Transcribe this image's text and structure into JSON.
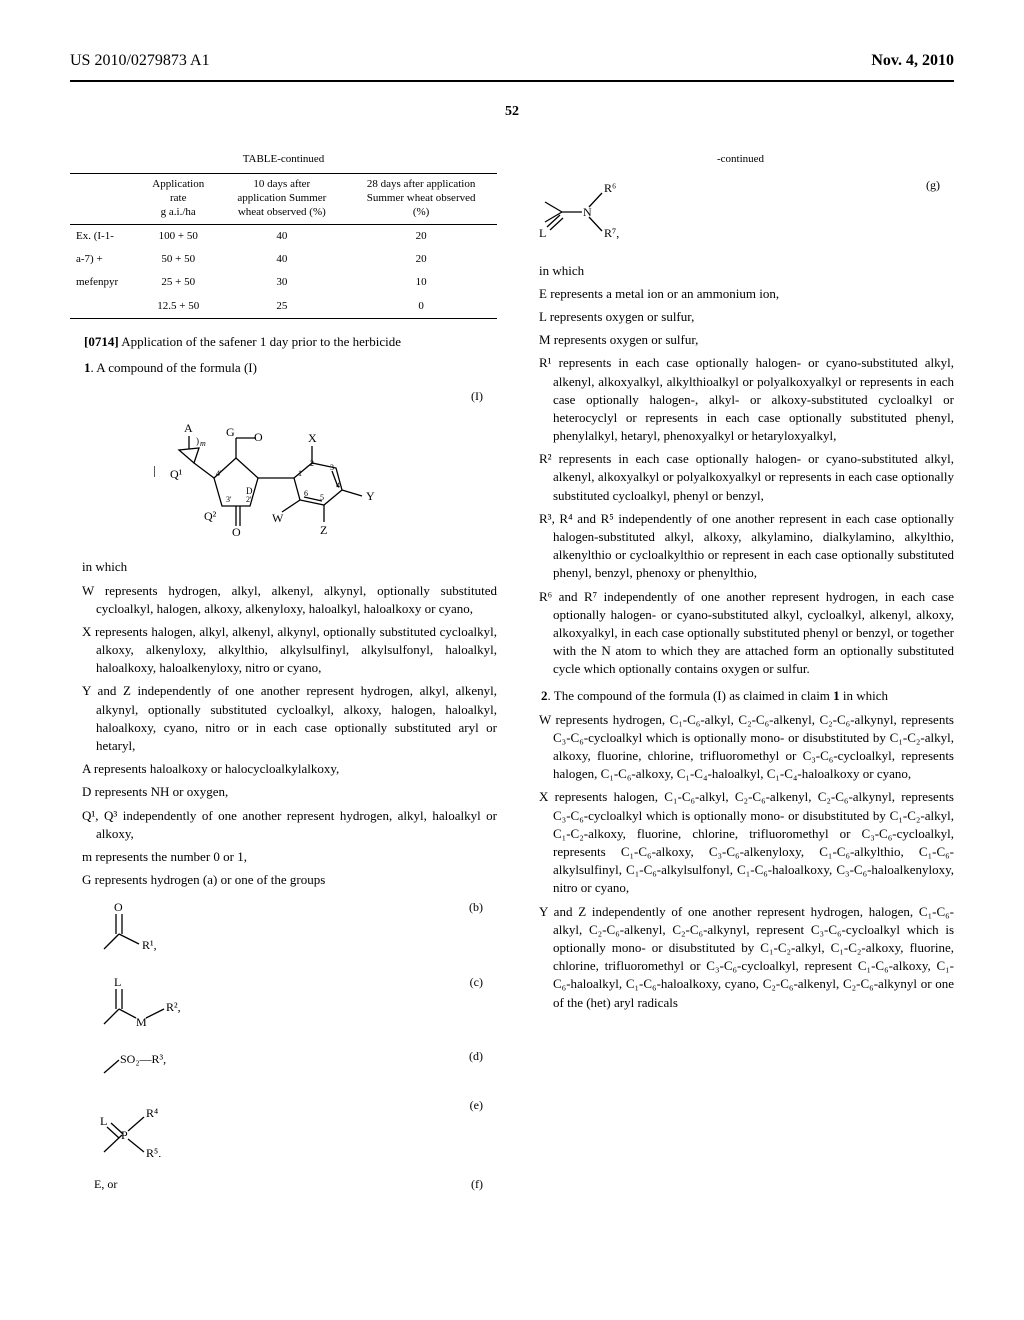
{
  "header": {
    "left": "US 2010/0279873 A1",
    "right": "Nov. 4, 2010"
  },
  "page_number": "52",
  "table": {
    "title": "TABLE-continued",
    "headers": {
      "c1": "",
      "c2": "Application\nrate\ng a.i./ha",
      "c3": "10 days after\napplication Summer\nwheat observed (%)",
      "c4": "28 days after application\nSummer wheat observed\n(%)"
    },
    "row_labels": [
      "Ex. (I-1-",
      "a-7) +",
      "mefenpyr",
      ""
    ],
    "rows": [
      {
        "c2": "100 + 50",
        "c3": "40",
        "c4": "20"
      },
      {
        "c2": "50 + 50",
        "c3": "40",
        "c4": "20"
      },
      {
        "c2": "25 + 50",
        "c3": "30",
        "c4": "10"
      },
      {
        "c2": "12.5 + 50",
        "c3": "25",
        "c4": "0"
      }
    ]
  },
  "para_0714": {
    "num": "[0714]",
    "text": "Application of the safener 1 day prior to the herbicide"
  },
  "claim1": {
    "opener_num": "1",
    "opener_text": ". A compound of the formula (I)",
    "formula_label": "(I)",
    "in_which": "in which",
    "defs": [
      "W represents hydrogen, alkyl, alkenyl, alkynyl, optionally substituted cycloalkyl, halogen, alkoxy, alkenyloxy, haloalkyl, haloalkoxy or cyano,",
      "X represents halogen, alkyl, alkenyl, alkynyl, optionally substituted cycloalkyl, alkoxy, alkenyloxy, alkylthio, alkylsulfinyl, alkylsulfonyl, haloalkyl, haloalkoxy, haloalkenyloxy, nitro or cyano,",
      "Y and Z independently of one another represent hydrogen, alkyl, alkenyl, alkynyl, optionally substituted cycloalkyl, alkoxy, halogen, haloalkyl, haloalkoxy, cyano, nitro or in each case optionally substituted aryl or hetaryl,",
      "A represents haloalkoxy or halocycloalkylalkoxy,",
      "D represents NH or oxygen,",
      "Q¹, Q³ independently of one another represent hydrogen, alkyl, haloalkyl or alkoxy,",
      "m represents the number 0 or 1,",
      "G represents hydrogen (a) or one of the groups"
    ],
    "sub_labels": {
      "b": "(b)",
      "c": "(c)",
      "d": "(d)",
      "e": "(e)",
      "f": "(f)",
      "g": "(g)"
    },
    "f_text": "E, or"
  },
  "right_col": {
    "continued": "-continued",
    "in_which": "in which",
    "defs": [
      "E represents a metal ion or an ammonium ion,",
      "L represents oxygen or sulfur,",
      "M represents oxygen or sulfur,",
      "R¹ represents in each case optionally halogen- or cyano-substituted alkyl, alkenyl, alkoxyalkyl, alkylthioalkyl or polyalkoxyalkyl or represents in each case optionally halogen-, alkyl- or alkoxy-substituted cycloalkyl or heterocyclyl or represents in each case optionally substituted phenyl, phenylalkyl, hetaryl, phenoxyalkyl or hetaryloxyalkyl,",
      "R² represents in each case optionally halogen- or cyano-substituted alkyl, alkenyl, alkoxyalkyl or polyalkoxyalkyl or represents in each case optionally substituted cycloalkyl, phenyl or benzyl,",
      "R³, R⁴ and R⁵ independently of one another represent in each case optionally halogen-substituted alkyl, alkoxy, alkylamino, dialkylamino, alkylthio, alkenylthio or cycloalkylthio or represent in each case optionally substituted phenyl, benzyl, phenoxy or phenylthio,",
      "R⁶ and R⁷ independently of one another represent hydrogen, in each case optionally halogen- or cyano-substituted alkyl, cycloalkyl, alkenyl, alkoxy, alkoxyalkyl, in each case optionally substituted phenyl or benzyl, or together with the N atom to which they are attached form an optionally substituted cycle which optionally contains oxygen or sulfur."
    ]
  },
  "claim2": {
    "opener_num": "2",
    "opener_text": ". The compound of the formula (I) as claimed in claim ",
    "ref_claim": "1",
    "opener_tail": " in which",
    "defs": [
      "W represents hydrogen, C₁-C₆-alkyl, C₂-C₆-alkenyl, C₂-C₆-alkynyl, represents C₃-C₆-cycloalkyl which is optionally mono- or disubstituted by C₁-C₂-alkyl, alkoxy, fluorine, chlorine, trifluoromethyl or C₃-C₆-cycloalkyl, represents halogen, C₁-C₆-alkoxy, C₁-C₄-haloalkyl, C₁-C₄-haloalkoxy or cyano,",
      "X represents halogen, C₁-C₆-alkyl, C₂-C₆-alkenyl, C₂-C₆-alkynyl, represents C₃-C₆-cycloalkyl which is optionally mono- or disubstituted by C₁-C₂-alkyl, C₁-C₂-alkoxy, fluorine, chlorine, trifluoromethyl or C₃-C₆-cycloalkyl, represents C₁-C₆-alkoxy, C₃-C₆-alkenyloxy, C₁-C₆-alkylthio, C₁-C₆-alkylsulfinyl, C₁-C₆-alkylsulfonyl, C₁-C₆-haloalkoxy, C₃-C₆-haloalkenyloxy, nitro or cyano,",
      "Y and Z independently of one another represent hydrogen, halogen, C₁-C₆-alkyl, C₂-C₆-alkenyl, C₂-C₆-alkynyl, represent C₃-C₆-cycloalkyl which is optionally mono- or disubstituted by C₁-C₂-alkyl, C₁-C₂-alkoxy, fluorine, chlorine, trifluoromethyl or C₃-C₆-cycloalkyl, represent C₁-C₆-alkoxy, C₁-C₆-haloalkyl, C₁-C₆-haloalkoxy, cyano, C₂-C₆-alkenyl, C₂-C₆-alkynyl or one of the (het) aryl radicals"
    ]
  }
}
